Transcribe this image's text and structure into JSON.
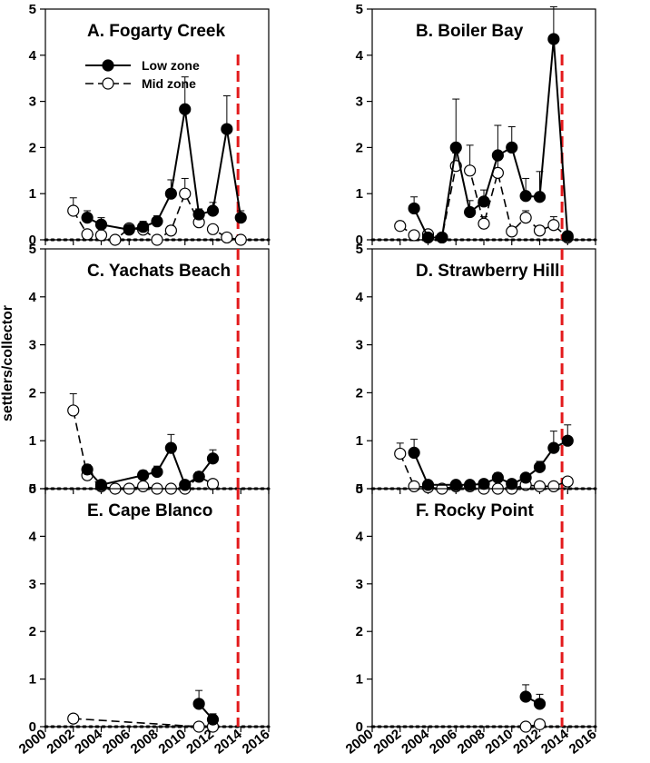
{
  "figure": {
    "ylabel": "settlers/collector",
    "colors": {
      "axis": "#000000",
      "event_line": "#e31a1c",
      "low_fill": "#000000",
      "mid_fill": "#ffffff"
    }
  },
  "chart_data": [
    {
      "type": "line",
      "title": "A. Fogarty Creek",
      "xlim": [
        2000,
        2016
      ],
      "ylim": [
        0,
        5
      ],
      "event_x": 2013.8,
      "baseline": 0,
      "legend": {
        "placement": "top-left",
        "entries": [
          "Low zone",
          "Mid zone"
        ]
      },
      "series": [
        {
          "name": "Low zone",
          "style": "solid-filled",
          "x": [
            2003,
            2004,
            2006,
            2007,
            2008,
            2009,
            2010,
            2011,
            2012,
            2013,
            2014
          ],
          "y": [
            0.48,
            0.33,
            0.22,
            0.28,
            0.4,
            1.0,
            2.83,
            0.55,
            0.63,
            2.4,
            0.48
          ],
          "err": [
            0.15,
            0.15,
            0.08,
            0.12,
            0.12,
            0.3,
            0.7,
            0.12,
            0.18,
            0.72,
            0.15
          ]
        },
        {
          "name": "Mid zone",
          "style": "dashed-open",
          "x": [
            2002,
            2003,
            2004,
            2005,
            2006,
            2007,
            2008,
            2009,
            2010,
            2011,
            2012,
            2013,
            2014
          ],
          "y": [
            0.63,
            0.12,
            0.1,
            0.0,
            0.25,
            0.22,
            0.0,
            0.2,
            1.0,
            0.38,
            0.23,
            0.05,
            0.0
          ],
          "err": [
            0.28,
            0.08,
            0.05,
            0.0,
            0.08,
            0.08,
            0.0,
            0.1,
            0.33,
            0.1,
            0.08,
            0.0,
            0.0
          ]
        }
      ]
    },
    {
      "type": "line",
      "title": "B. Boiler Bay",
      "xlim": [
        2000,
        2016
      ],
      "ylim": [
        0,
        5
      ],
      "event_x": 2013.6,
      "baseline": 0,
      "series": [
        {
          "name": "Low zone",
          "style": "solid-filled",
          "x": [
            2003,
            2004,
            2005,
            2006,
            2007,
            2008,
            2009,
            2010,
            2011,
            2012,
            2013,
            2014
          ],
          "y": [
            0.68,
            0.05,
            0.05,
            2.0,
            0.6,
            0.83,
            1.83,
            2.0,
            0.95,
            0.93,
            4.35,
            0.08
          ],
          "err": [
            0.25,
            0.05,
            0.03,
            1.05,
            0.25,
            0.25,
            0.65,
            0.45,
            0.38,
            0.55,
            0.7,
            0.05
          ]
        },
        {
          "name": "Mid zone",
          "style": "dashed-open",
          "x": [
            2002,
            2003,
            2004,
            2005,
            2006,
            2007,
            2008,
            2009,
            2010,
            2011,
            2012,
            2013,
            2014
          ],
          "y": [
            0.3,
            0.1,
            0.12,
            0.05,
            1.6,
            1.5,
            0.35,
            1.45,
            0.18,
            0.48,
            0.2,
            0.32,
            0.05
          ],
          "err": [
            0.1,
            0.05,
            0.05,
            0.03,
            0.28,
            0.55,
            0.15,
            0.45,
            0.1,
            0.15,
            0.1,
            0.18,
            0.03
          ]
        }
      ]
    },
    {
      "type": "line",
      "title": "C. Yachats Beach",
      "xlim": [
        2000,
        2016
      ],
      "ylim": [
        0,
        5
      ],
      "event_x": 2013.8,
      "baseline": 0,
      "series": [
        {
          "name": "Low zone",
          "style": "solid-filled",
          "x": [
            2003,
            2004,
            2007,
            2008,
            2009,
            2010,
            2011,
            2012
          ],
          "y": [
            0.4,
            0.08,
            0.28,
            0.35,
            0.85,
            0.08,
            0.25,
            0.63
          ],
          "err": [
            0.1,
            0.05,
            0.1,
            0.12,
            0.28,
            0.05,
            0.1,
            0.18
          ]
        },
        {
          "name": "Mid zone",
          "style": "dashed-open",
          "x": [
            2002,
            2003,
            2004,
            2005,
            2006,
            2007,
            2008,
            2009,
            2010,
            2011,
            2012
          ],
          "y": [
            1.63,
            0.28,
            0.05,
            0.0,
            0.0,
            0.05,
            0.0,
            0.0,
            0.0,
            0.25,
            0.1
          ],
          "err": [
            0.35,
            0.08,
            0.03,
            0.0,
            0.0,
            0.03,
            0.0,
            0.0,
            0.0,
            0.08,
            0.05
          ]
        }
      ]
    },
    {
      "type": "line",
      "title": "D. Strawberry Hill",
      "xlim": [
        2000,
        2016
      ],
      "ylim": [
        0,
        5
      ],
      "event_x": 2013.6,
      "baseline": 0,
      "series": [
        {
          "name": "Low zone",
          "style": "solid-filled",
          "x": [
            2003,
            2004,
            2006,
            2007,
            2008,
            2009,
            2010,
            2011,
            2012,
            2013,
            2014
          ],
          "y": [
            0.75,
            0.08,
            0.08,
            0.08,
            0.1,
            0.23,
            0.1,
            0.23,
            0.45,
            0.85,
            1.0
          ],
          "err": [
            0.28,
            0.05,
            0.05,
            0.05,
            0.05,
            0.1,
            0.05,
            0.08,
            0.12,
            0.35,
            0.33
          ]
        },
        {
          "name": "Mid zone",
          "style": "dashed-open",
          "x": [
            2002,
            2003,
            2004,
            2005,
            2006,
            2007,
            2008,
            2009,
            2010,
            2011,
            2012,
            2013,
            2014
          ],
          "y": [
            0.73,
            0.05,
            0.03,
            0.0,
            0.05,
            0.05,
            0.0,
            0.0,
            0.0,
            0.08,
            0.05,
            0.05,
            0.15
          ],
          "err": [
            0.22,
            0.03,
            0.02,
            0.0,
            0.03,
            0.03,
            0.0,
            0.0,
            0.0,
            0.05,
            0.03,
            0.03,
            0.05
          ]
        }
      ]
    },
    {
      "type": "line",
      "title": "E. Cape Blanco",
      "xlim": [
        2000,
        2016
      ],
      "ylim": [
        0,
        5
      ],
      "event_x": 2013.8,
      "baseline": 0,
      "series": [
        {
          "name": "Low zone",
          "style": "solid-filled",
          "x": [
            2011,
            2012
          ],
          "y": [
            0.48,
            0.15
          ],
          "err": [
            0.28,
            0.12
          ]
        },
        {
          "name": "Mid zone",
          "style": "dashed-open",
          "x": [
            2002,
            2011,
            2012
          ],
          "y": [
            0.17,
            0.0,
            0.0
          ],
          "err": [
            0.0,
            0.0,
            0.0
          ]
        }
      ]
    },
    {
      "type": "line",
      "title": "F. Rocky Point",
      "xlim": [
        2000,
        2016
      ],
      "ylim": [
        0,
        5
      ],
      "event_x": 2013.6,
      "baseline": 0,
      "series": [
        {
          "name": "Low zone",
          "style": "solid-filled",
          "x": [
            2011,
            2012
          ],
          "y": [
            0.63,
            0.48
          ],
          "err": [
            0.25,
            0.2
          ]
        },
        {
          "name": "Mid zone",
          "style": "dashed-open",
          "x": [
            2011,
            2012
          ],
          "y": [
            0.0,
            0.05
          ],
          "err": [
            0.0,
            0.03
          ]
        }
      ]
    }
  ],
  "axes": {
    "y_ticks": [
      "0",
      "1",
      "2",
      "3",
      "4",
      "5"
    ],
    "x_ticks": [
      "2000",
      "2002",
      "2004",
      "2006",
      "2008",
      "2010",
      "2012",
      "2014",
      "2016"
    ],
    "y_tick_values": [
      0,
      1,
      2,
      3,
      4,
      5
    ],
    "x_tick_values": [
      2000,
      2002,
      2004,
      2006,
      2008,
      2010,
      2012,
      2014,
      2016
    ]
  }
}
